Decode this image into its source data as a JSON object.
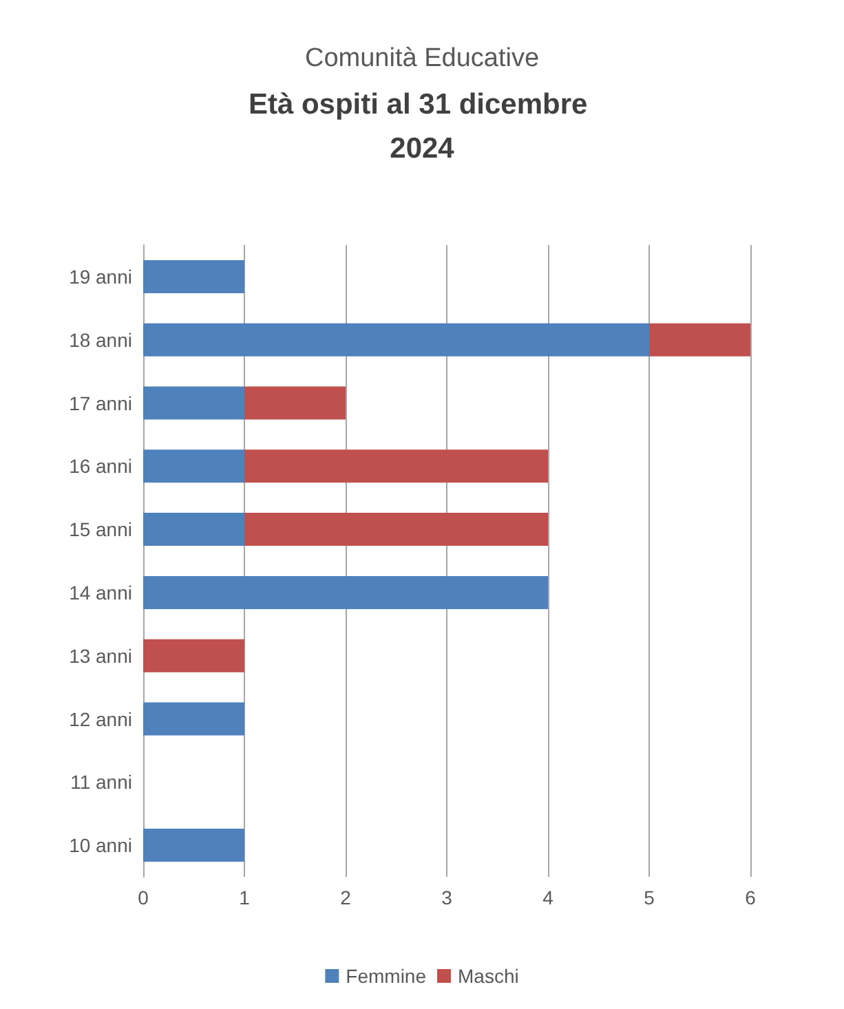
{
  "chart_data": {
    "type": "bar",
    "orientation": "horizontal",
    "stacked": true,
    "title": "Comunità Educative",
    "subtitle": "Età ospiti al 31 dicembre 2024",
    "categories": [
      "19 anni",
      "18 anni",
      "17 anni",
      "16 anni",
      "15 anni",
      "14 anni",
      "13 anni",
      "12 anni",
      "11 anni",
      "10 anni"
    ],
    "series": [
      {
        "name": "Femmine",
        "color": "#4f81bd",
        "values": [
          1,
          5,
          1,
          1,
          1,
          4,
          0,
          1,
          0,
          1
        ]
      },
      {
        "name": "Maschi",
        "color": "#c0504d",
        "values": [
          0,
          1,
          1,
          3,
          3,
          0,
          1,
          0,
          0,
          0
        ]
      }
    ],
    "xlim": [
      0,
      6
    ],
    "xticks": [
      0,
      1,
      2,
      3,
      4,
      5,
      6
    ],
    "grid": "x",
    "legend": "bottom"
  }
}
